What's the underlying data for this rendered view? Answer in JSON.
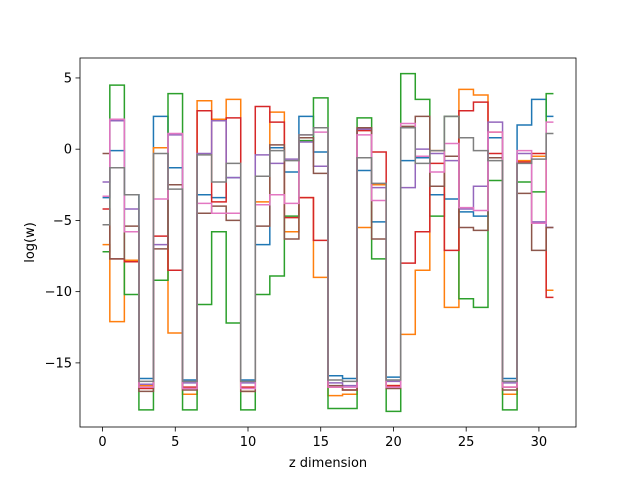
{
  "chart_data": {
    "type": "line",
    "drawstyle": "steps-mid",
    "xlabel": "z dimension",
    "ylabel": "log(w)",
    "xlim": [
      -1.55,
      32.55
    ],
    "ylim": [
      -19.5,
      6.4
    ],
    "xticks": [
      0,
      5,
      10,
      15,
      20,
      25,
      30
    ],
    "yticks": [
      -15,
      -10,
      -5,
      0,
      5
    ],
    "xtick_labels": [
      "0",
      "5",
      "10",
      "15",
      "20",
      "25",
      "30"
    ],
    "ytick_labels": [
      "−15",
      "−10",
      "−5",
      "0",
      "5"
    ],
    "grid": false,
    "series": [
      {
        "color": "#1f77b4",
        "values": [
          -3.4,
          -0.1,
          -3.2,
          -16.1,
          2.3,
          -1.3,
          -16.2,
          -3.2,
          -3.4,
          -2.0,
          -16.2,
          -6.7,
          0.1,
          -1.6,
          2.3,
          -0.2,
          -15.9,
          -16.1,
          -1.5,
          -5.1,
          -16.0,
          -0.8,
          -0.6,
          -3.2,
          -3.5,
          -4.4,
          -4.7,
          0.8,
          -16.1,
          1.7,
          3.5,
          2.3
        ]
      },
      {
        "color": "#ff7f0e",
        "values": [
          -6.7,
          -12.1,
          -7.8,
          -16.6,
          0.1,
          -12.9,
          -17.2,
          3.4,
          2.1,
          3.5,
          -17.0,
          -3.7,
          2.6,
          -5.8,
          -3.4,
          -9.0,
          -17.3,
          -17.2,
          -5.5,
          -2.5,
          -16.6,
          -13.0,
          -8.5,
          -0.1,
          -11.1,
          4.2,
          3.8,
          1.2,
          -17.2,
          -0.8,
          -0.5,
          -9.9
        ]
      },
      {
        "color": "#2ca02c",
        "values": [
          -7.2,
          4.5,
          -10.2,
          -18.3,
          -9.2,
          3.9,
          -18.3,
          -10.9,
          -5.8,
          -12.2,
          -18.3,
          -10.2,
          -8.9,
          -4.7,
          0.6,
          3.6,
          -18.2,
          -18.2,
          2.2,
          -7.7,
          -18.4,
          5.3,
          3.5,
          -4.7,
          2.3,
          -10.5,
          -11.1,
          -2.2,
          -18.3,
          -2.3,
          -3.0,
          3.9
        ]
      },
      {
        "color": "#d62728",
        "values": [
          -4.2,
          -7.7,
          -7.9,
          -16.8,
          -6.1,
          -8.5,
          -16.7,
          2.7,
          -3.7,
          2.2,
          -16.7,
          3.0,
          1.9,
          -4.8,
          -3.4,
          -6.4,
          -16.7,
          -16.9,
          1.3,
          -0.2,
          -16.6,
          -8.0,
          -5.8,
          -1.0,
          -7.1,
          2.7,
          3.3,
          -0.3,
          -16.7,
          -0.9,
          -0.3,
          -10.4
        ]
      },
      {
        "color": "#9467bd",
        "values": [
          -2.3,
          2.0,
          -4.2,
          -16.5,
          -6.7,
          1.0,
          -16.4,
          -0.3,
          2.0,
          -2.0,
          -16.4,
          -0.4,
          -1.0,
          -0.7,
          0.5,
          -1.2,
          -16.4,
          -16.6,
          1.4,
          -2.7,
          -16.3,
          -2.7,
          0.0,
          -0.3,
          -0.8,
          -4.2,
          -2.6,
          1.9,
          -16.4,
          -0.3,
          -5.1,
          -5.5
        ]
      },
      {
        "color": "#8c564b",
        "values": [
          -0.3,
          -7.7,
          -5.4,
          -17.0,
          -7.0,
          -2.5,
          -16.9,
          -4.5,
          -4.0,
          -5.0,
          -17.0,
          -5.4,
          0.3,
          -6.3,
          0.8,
          -1.7,
          -16.6,
          -16.9,
          1.5,
          -6.3,
          -16.8,
          1.6,
          2.3,
          -2.6,
          -0.5,
          -5.5,
          -5.7,
          -0.6,
          -16.9,
          -3.1,
          -7.1,
          -5.5
        ]
      },
      {
        "color": "#e377c2",
        "values": [
          -3.3,
          2.1,
          -5.8,
          -16.7,
          -3.5,
          1.1,
          -16.8,
          -3.8,
          -4.5,
          -4.5,
          -16.8,
          -3.9,
          -3.2,
          -3.8,
          1.0,
          1.2,
          -16.7,
          -16.7,
          1.0,
          -3.6,
          -16.7,
          1.8,
          -0.5,
          -1.6,
          0.4,
          -4.1,
          -4.3,
          1.2,
          -16.7,
          -0.1,
          -5.2,
          1.9
        ]
      },
      {
        "color": "#7f7f7f",
        "values": [
          -5.3,
          -1.3,
          -3.2,
          -16.3,
          -0.3,
          -2.8,
          -16.3,
          -0.4,
          -2.3,
          -1.0,
          -16.3,
          -1.9,
          -0.1,
          -0.8,
          1.0,
          1.5,
          -16.2,
          -16.3,
          -0.6,
          -2.4,
          -16.2,
          1.5,
          -1.0,
          -0.1,
          2.3,
          0.8,
          -0.1,
          -0.8,
          -16.3,
          -1.0,
          -0.7,
          1.1
        ]
      }
    ]
  }
}
